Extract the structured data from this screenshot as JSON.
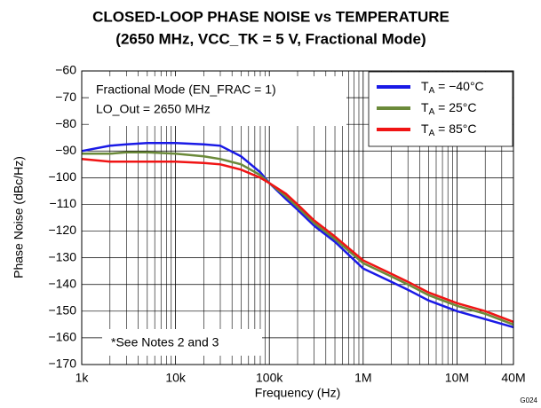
{
  "chart_data": {
    "type": "line",
    "title": [
      "CLOSED-LOOP PHASE NOISE vs TEMPERATURE",
      "(2650 MHz, VCC_TK = 5 V, Fractional Mode)"
    ],
    "x_label": "Frequency (Hz)",
    "y_label": "Phase Noise (dBc/Hz)",
    "annotations": [
      "Fractional Mode (EN_FRAC = 1)",
      "LO_Out = 2650 MHz",
      "*See Notes 2 and 3",
      "G024"
    ],
    "x": [
      1000,
      2000,
      3000,
      5000,
      10000,
      20000,
      30000,
      50000,
      80000,
      100000,
      150000,
      200000,
      300000,
      500000,
      1000000,
      2000000,
      3000000,
      5000000,
      10000000,
      20000000,
      40000000
    ],
    "series": [
      {
        "name": "TA = −40°C",
        "color": "#1a1ae6",
        "values": [
          -90,
          -88,
          -87.5,
          -87,
          -87,
          -87.5,
          -88,
          -92,
          -98,
          -102,
          -108,
          -112,
          -118,
          -124,
          -134,
          -139,
          -142,
          -146,
          -150,
          -153,
          -156
        ]
      },
      {
        "name": "TA = 25°C",
        "color": "#6b8a3a",
        "values": [
          -91,
          -91,
          -90.5,
          -90.5,
          -91,
          -92,
          -93,
          -95,
          -99,
          -102,
          -107,
          -111,
          -117,
          -123,
          -132,
          -137,
          -140,
          -144,
          -148,
          -151,
          -155
        ]
      },
      {
        "name": "TA = 85°C",
        "color": "#f01414",
        "values": [
          -93,
          -94,
          -94,
          -94,
          -94,
          -94.5,
          -95,
          -97,
          -100,
          -102,
          -106,
          -110,
          -116,
          -122,
          -131,
          -136,
          -139,
          -143,
          -147,
          -150,
          -154
        ]
      }
    ],
    "xlim": [
      1000,
      40000000
    ],
    "x_log": true,
    "xticks": [
      {
        "value": 1000,
        "label": "1k"
      },
      {
        "value": 10000,
        "label": "10k"
      },
      {
        "value": 100000,
        "label": "100k"
      },
      {
        "value": 1000000,
        "label": "1M"
      },
      {
        "value": 10000000,
        "label": "10M"
      },
      {
        "value": 40000000,
        "label": "40M"
      }
    ],
    "ylim": [
      -170,
      -60
    ],
    "yticks": [
      {
        "value": -170,
        "label": "−170"
      },
      {
        "value": -160,
        "label": "−160"
      },
      {
        "value": -150,
        "label": "−150"
      },
      {
        "value": -140,
        "label": "−140"
      },
      {
        "value": -130,
        "label": "−130"
      },
      {
        "value": -120,
        "label": "−120"
      },
      {
        "value": -110,
        "label": "−110"
      },
      {
        "value": -100,
        "label": "−100"
      },
      {
        "value": -90,
        "label": "−90"
      },
      {
        "value": -80,
        "label": "−80"
      },
      {
        "value": -70,
        "label": "−70"
      },
      {
        "value": -60,
        "label": "−60"
      }
    ],
    "grid": true,
    "legend": "upper right"
  }
}
